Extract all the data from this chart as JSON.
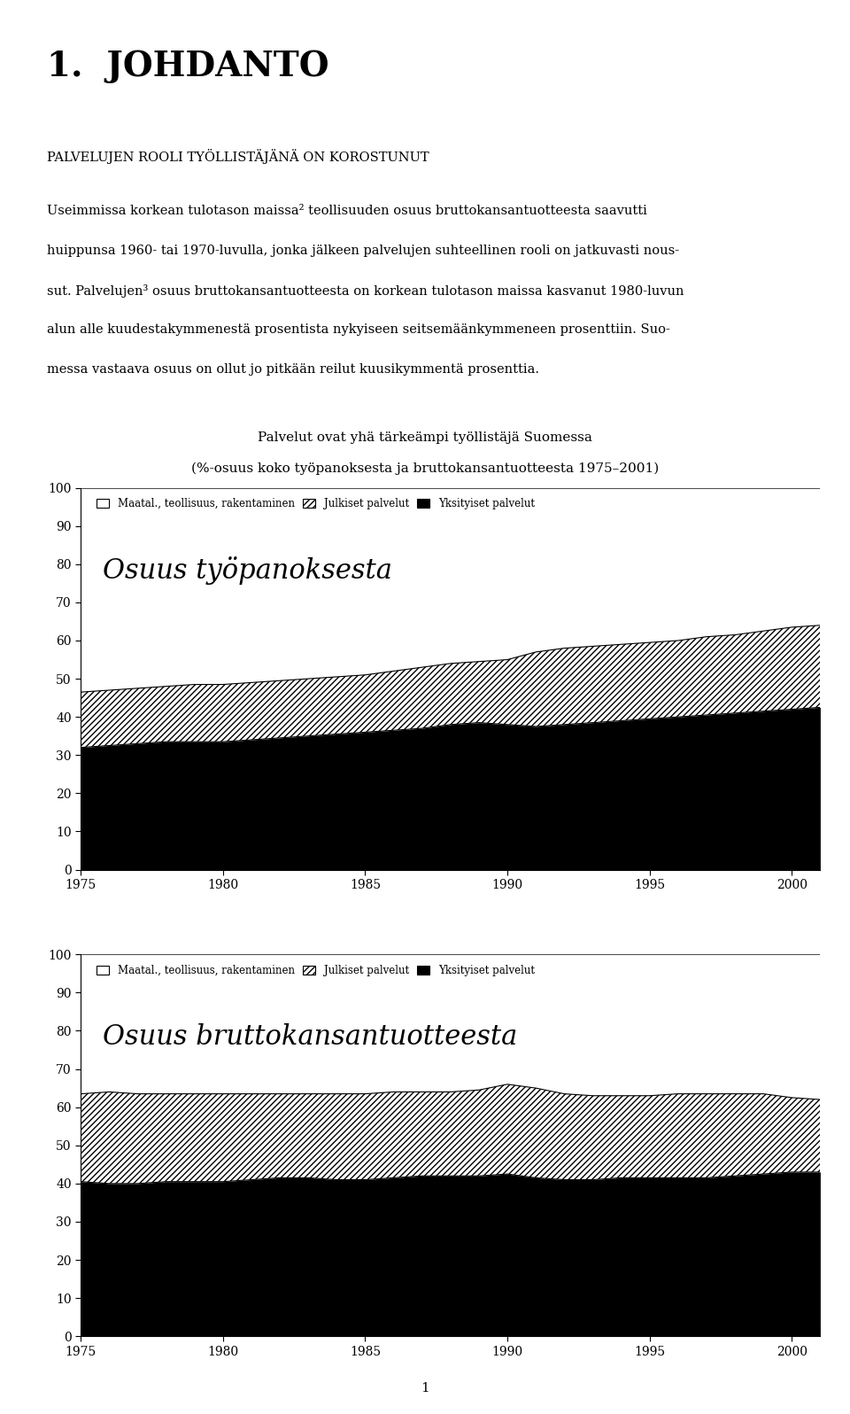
{
  "title_chapter": "1.  JOHDANTO",
  "subtitle": "PALVELUJEN ROOLI TYÖLLISTÄJÄNÄ ON KOROSTUNUT",
  "body_lines": [
    "Useimmissa korkean tulotason maissa² teollisuuden osuus bruttokansantuotteesta saavutti",
    "huippunsa 1960- tai 1970-luvulla, jonka jälkeen palvelujen suhteellinen rooli on jatkuvasti nous-",
    "sut. Palvelujen³ osuus bruttokansantuotteesta on korkean tulotason maissa kasvanut 1980-luvun",
    "alun alle kuudestakymmenestä prosentista nykyiseen seitsemäänkymmeneen prosenttiin. Suo-",
    "messa vastaava osuus on ollut jo pitkään reilut kuusikymmentä prosenttia."
  ],
  "chart_title_line1": "Palvelut ovat yhä tärkeämpi työllistäjä Suomessa",
  "chart_title_line2": "(%-osuus koko työpanoksesta ja bruttokansantuotteesta 1975–2001)",
  "years": [
    1975,
    1976,
    1977,
    1978,
    1979,
    1980,
    1981,
    1982,
    1983,
    1984,
    1985,
    1986,
    1987,
    1988,
    1989,
    1990,
    1991,
    1992,
    1993,
    1994,
    1995,
    1996,
    1997,
    1998,
    1999,
    2000,
    2001
  ],
  "chart1_label": "Osuus työpanoksesta",
  "chart2_label": "Osuus bruttokansantuotteesta",
  "legend_entries": [
    "Maatal., teollisuus, rakentaminen",
    "Julkiset palvelut",
    "Yksityiset palvelut"
  ],
  "chart1_yksityiset": [
    32.0,
    32.5,
    33.0,
    33.5,
    33.5,
    33.5,
    34.0,
    34.5,
    35.0,
    35.5,
    36.0,
    36.5,
    37.0,
    38.0,
    38.5,
    38.0,
    37.5,
    38.0,
    38.5,
    39.0,
    39.5,
    40.0,
    40.5,
    41.0,
    41.5,
    42.0,
    42.5
  ],
  "chart1_julkiset_top": [
    46.5,
    47.0,
    47.5,
    48.0,
    48.5,
    48.5,
    49.0,
    49.5,
    50.0,
    50.5,
    51.0,
    52.0,
    53.0,
    54.0,
    54.5,
    55.0,
    57.0,
    58.0,
    58.5,
    59.0,
    59.5,
    60.0,
    61.0,
    61.5,
    62.5,
    63.5,
    64.0
  ],
  "chart2_yksityiset": [
    40.5,
    40.0,
    40.0,
    40.5,
    40.5,
    40.5,
    41.0,
    41.5,
    41.5,
    41.0,
    41.0,
    41.5,
    42.0,
    42.0,
    42.0,
    42.5,
    41.5,
    41.0,
    41.0,
    41.5,
    41.5,
    41.5,
    41.5,
    42.0,
    42.5,
    43.0,
    43.0
  ],
  "chart2_julkiset_top": [
    63.5,
    64.0,
    63.5,
    63.5,
    63.5,
    63.5,
    63.5,
    63.5,
    63.5,
    63.5,
    63.5,
    64.0,
    64.0,
    64.0,
    64.5,
    66.0,
    65.0,
    63.5,
    63.0,
    63.0,
    63.0,
    63.5,
    63.5,
    63.5,
    63.5,
    62.5,
    62.0
  ],
  "ylim": [
    0,
    100
  ],
  "yticks": [
    0,
    10,
    20,
    30,
    40,
    50,
    60,
    70,
    80,
    90,
    100
  ],
  "xticks": [
    1975,
    1980,
    1985,
    1990,
    1995,
    2000
  ],
  "background_color": "#ffffff",
  "page_number": "1"
}
